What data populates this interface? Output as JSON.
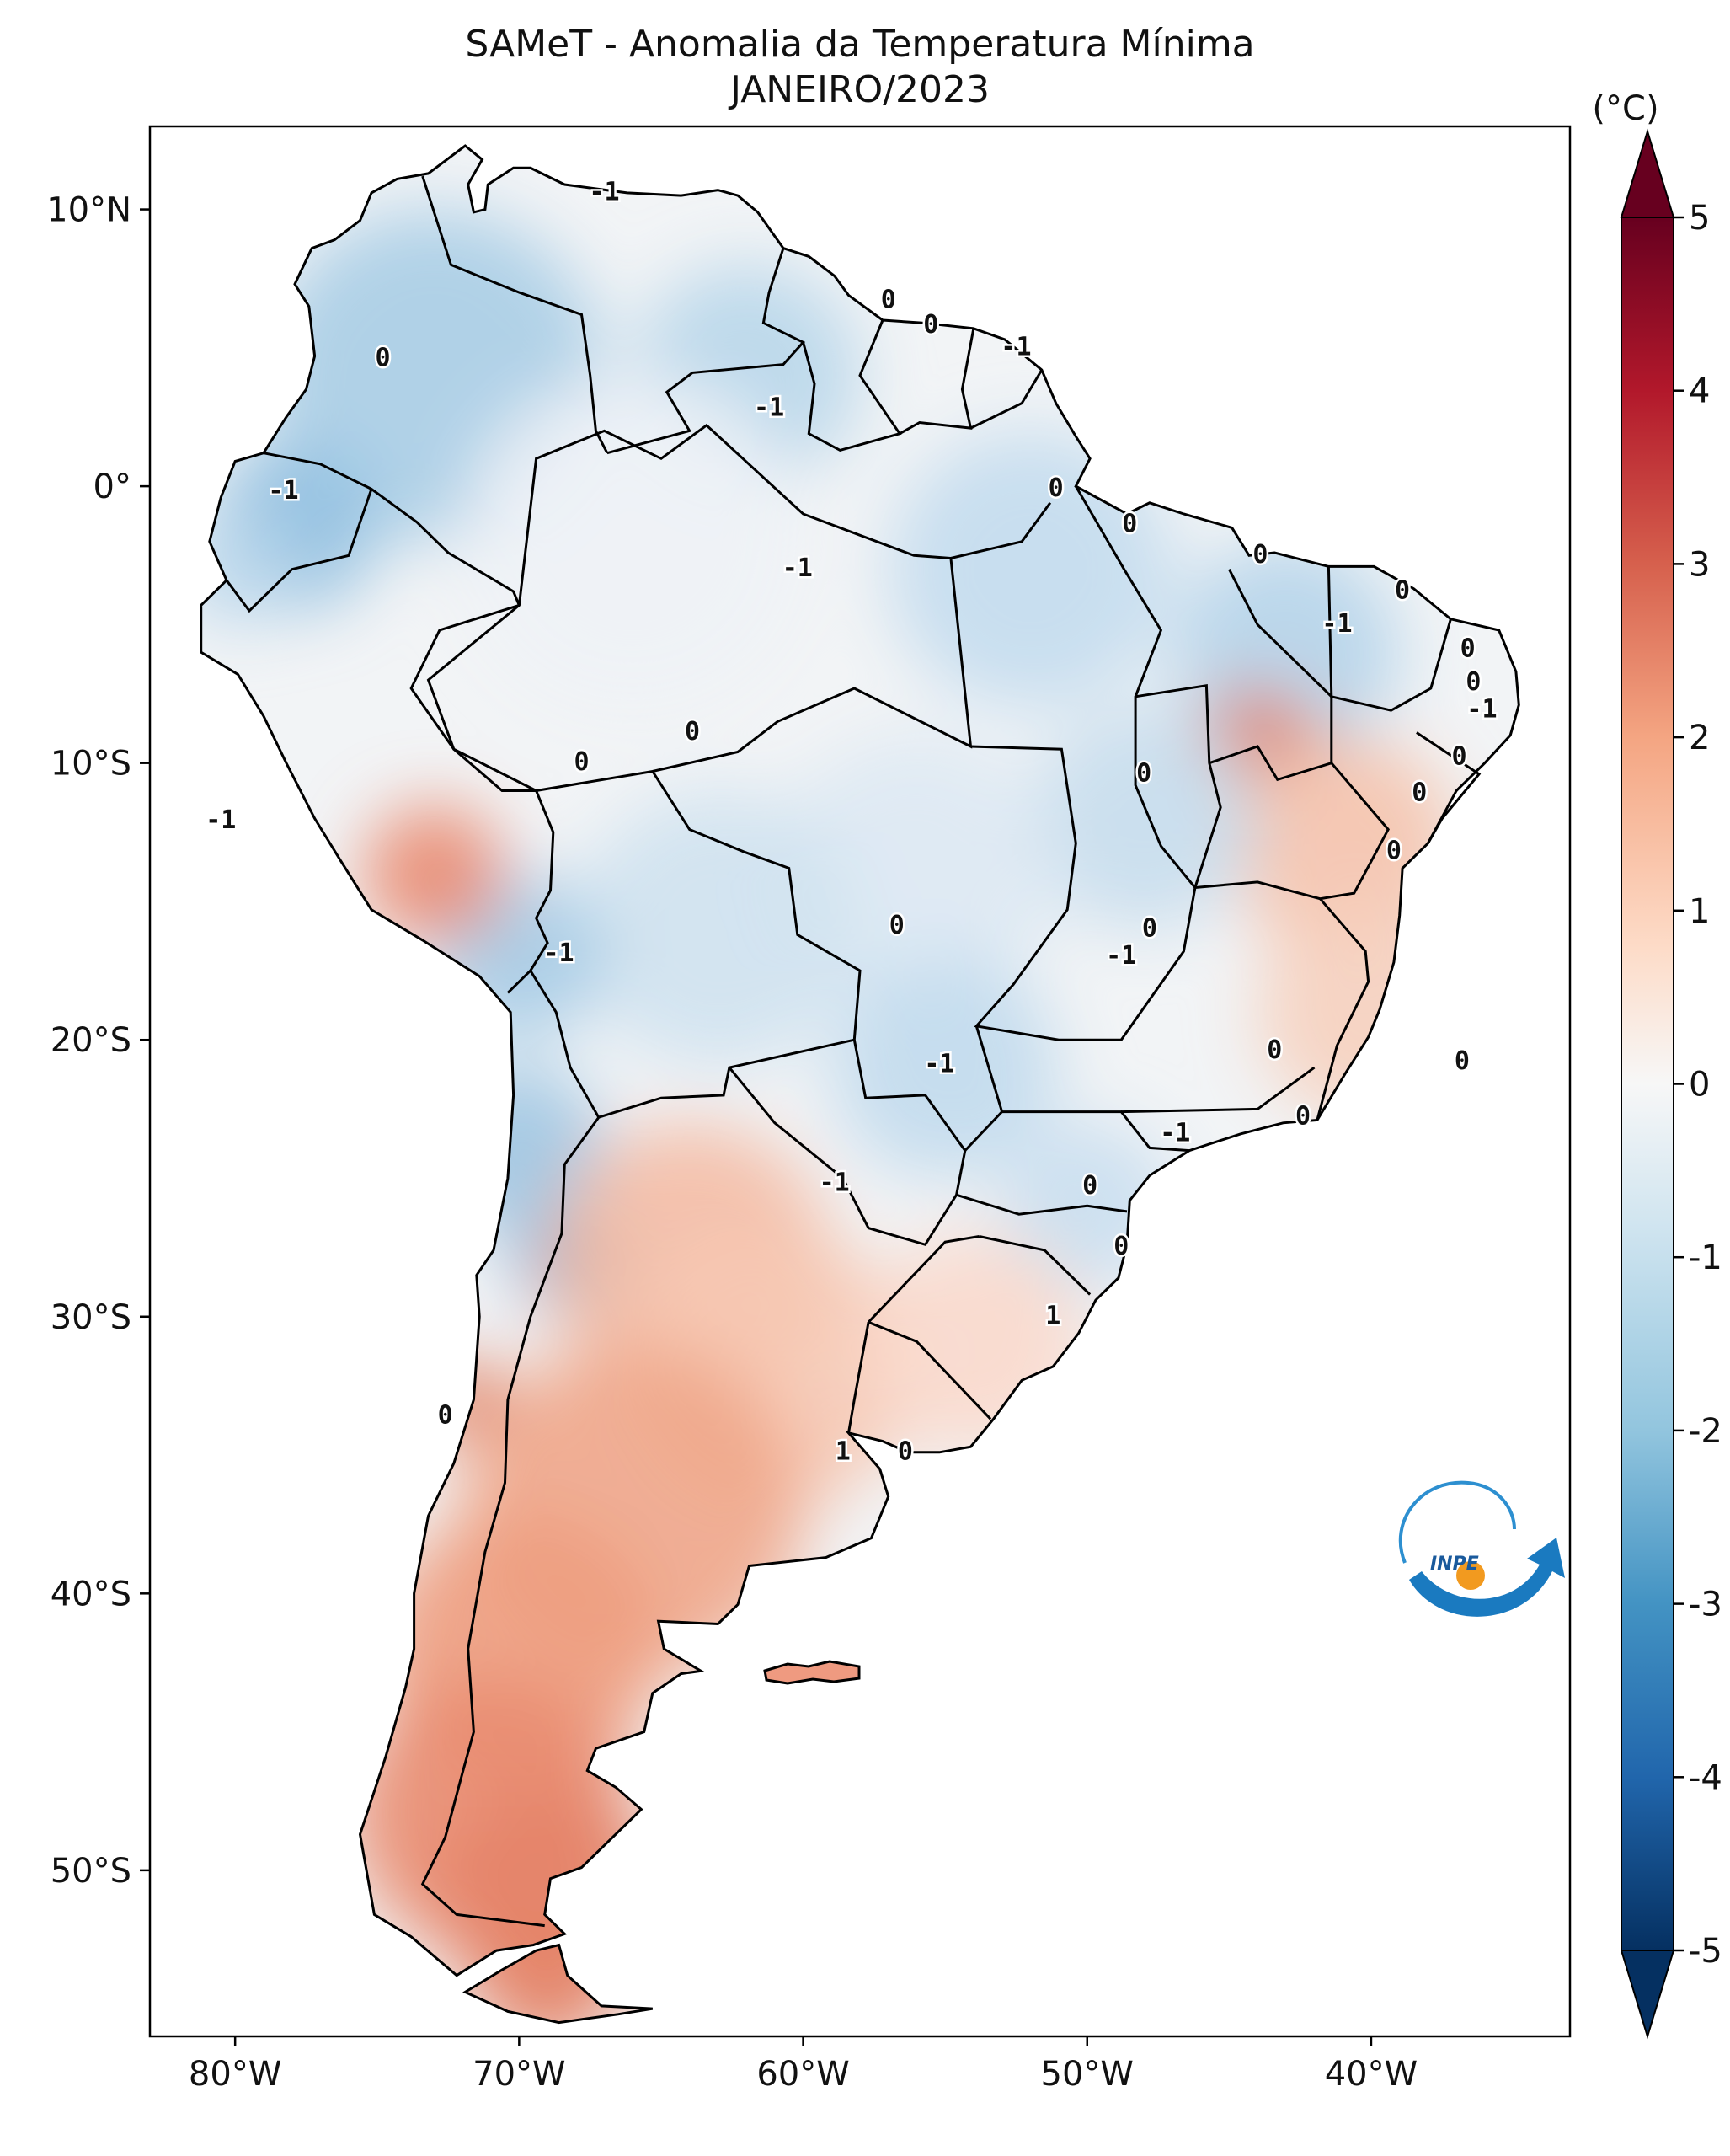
{
  "title": {
    "line1": "SAMeT - Anomalia da Temperatura Mínima",
    "line2": "JANEIRO/2023"
  },
  "map": {
    "lon_range": [
      -83,
      -33
    ],
    "lat_range": [
      -56,
      13
    ],
    "lon_ticks": [
      "80°W",
      "70°W",
      "60°W",
      "50°W",
      "40°W"
    ],
    "lat_ticks": [
      "10°N",
      "0°",
      "10°S",
      "20°S",
      "30°S",
      "40°S",
      "50°S"
    ],
    "contour_labels": [
      {
        "text": "-1",
        "lon": -67,
        "lat": 10.6
      },
      {
        "text": "0",
        "lon": -57,
        "lat": 6.7
      },
      {
        "text": "0",
        "lon": -55.5,
        "lat": 5.8
      },
      {
        "text": "-1",
        "lon": -52.5,
        "lat": 5.0
      },
      {
        "text": "0",
        "lon": -74.8,
        "lat": 4.6
      },
      {
        "text": "-1",
        "lon": -61.2,
        "lat": 2.8
      },
      {
        "text": "-1",
        "lon": -78.3,
        "lat": -0.2
      },
      {
        "text": "0",
        "lon": -51.1,
        "lat": -0.1
      },
      {
        "text": "0",
        "lon": -48.5,
        "lat": -1.4
      },
      {
        "text": "-1",
        "lon": -60.2,
        "lat": -3.0
      },
      {
        "text": "0",
        "lon": -43.9,
        "lat": -2.5
      },
      {
        "text": "0",
        "lon": -38.9,
        "lat": -3.8
      },
      {
        "text": "-1",
        "lon": -41.2,
        "lat": -5.0
      },
      {
        "text": "0",
        "lon": -36.6,
        "lat": -5.9
      },
      {
        "text": "0",
        "lon": -36.4,
        "lat": -7.1
      },
      {
        "text": "-1",
        "lon": -36.1,
        "lat": -8.1
      },
      {
        "text": "0",
        "lon": -63.9,
        "lat": -8.9
      },
      {
        "text": "0",
        "lon": -67.8,
        "lat": -10.0
      },
      {
        "text": "0",
        "lon": -36.9,
        "lat": -9.8
      },
      {
        "text": "0",
        "lon": -48.0,
        "lat": -10.4
      },
      {
        "text": "0",
        "lon": -38.3,
        "lat": -11.1
      },
      {
        "text": "-1",
        "lon": -80.5,
        "lat": -12.1
      },
      {
        "text": "0",
        "lon": -39.2,
        "lat": -13.2
      },
      {
        "text": "0",
        "lon": -56.7,
        "lat": -15.9
      },
      {
        "text": "0",
        "lon": -47.8,
        "lat": -16.0
      },
      {
        "text": "-1",
        "lon": -48.8,
        "lat": -17.0
      },
      {
        "text": "-1",
        "lon": -68.6,
        "lat": -16.9
      },
      {
        "text": "0",
        "lon": -43.4,
        "lat": -20.4
      },
      {
        "text": "0",
        "lon": -36.8,
        "lat": -20.8
      },
      {
        "text": "-1",
        "lon": -55.2,
        "lat": -20.9
      },
      {
        "text": "0",
        "lon": -42.4,
        "lat": -22.8
      },
      {
        "text": "-1",
        "lon": -46.9,
        "lat": -23.4
      },
      {
        "text": "-1",
        "lon": -58.9,
        "lat": -25.2
      },
      {
        "text": "0",
        "lon": -49.9,
        "lat": -25.3
      },
      {
        "text": "0",
        "lon": -48.8,
        "lat": -27.5
      },
      {
        "text": "1",
        "lon": -51.2,
        "lat": -30.0
      },
      {
        "text": "0",
        "lon": -72.6,
        "lat": -33.6
      },
      {
        "text": "1",
        "lon": -58.6,
        "lat": -34.9
      },
      {
        "text": "0",
        "lon": -56.4,
        "lat": -34.9
      }
    ]
  },
  "colorbar": {
    "unit": "(°C)",
    "ticks": [
      "5",
      "4",
      "3",
      "2",
      "1",
      "0",
      "-1",
      "-2",
      "-3",
      "-4",
      "-5"
    ],
    "range": [
      -5,
      5
    ],
    "colors": [
      "#053061",
      "#2166ac",
      "#4393c3",
      "#92c5de",
      "#d1e5f0",
      "#f7f7f7",
      "#fddbc7",
      "#f4a582",
      "#d6604d",
      "#b2182b",
      "#67001f"
    ]
  },
  "logo": {
    "text": "INPE"
  },
  "colors": {
    "neg_anomaly": "#9ec6e2",
    "near_zero": "#f2f4f6",
    "pos_anomaly": "#ef9a80",
    "ocean": "#ffffff",
    "border": "#000000"
  }
}
